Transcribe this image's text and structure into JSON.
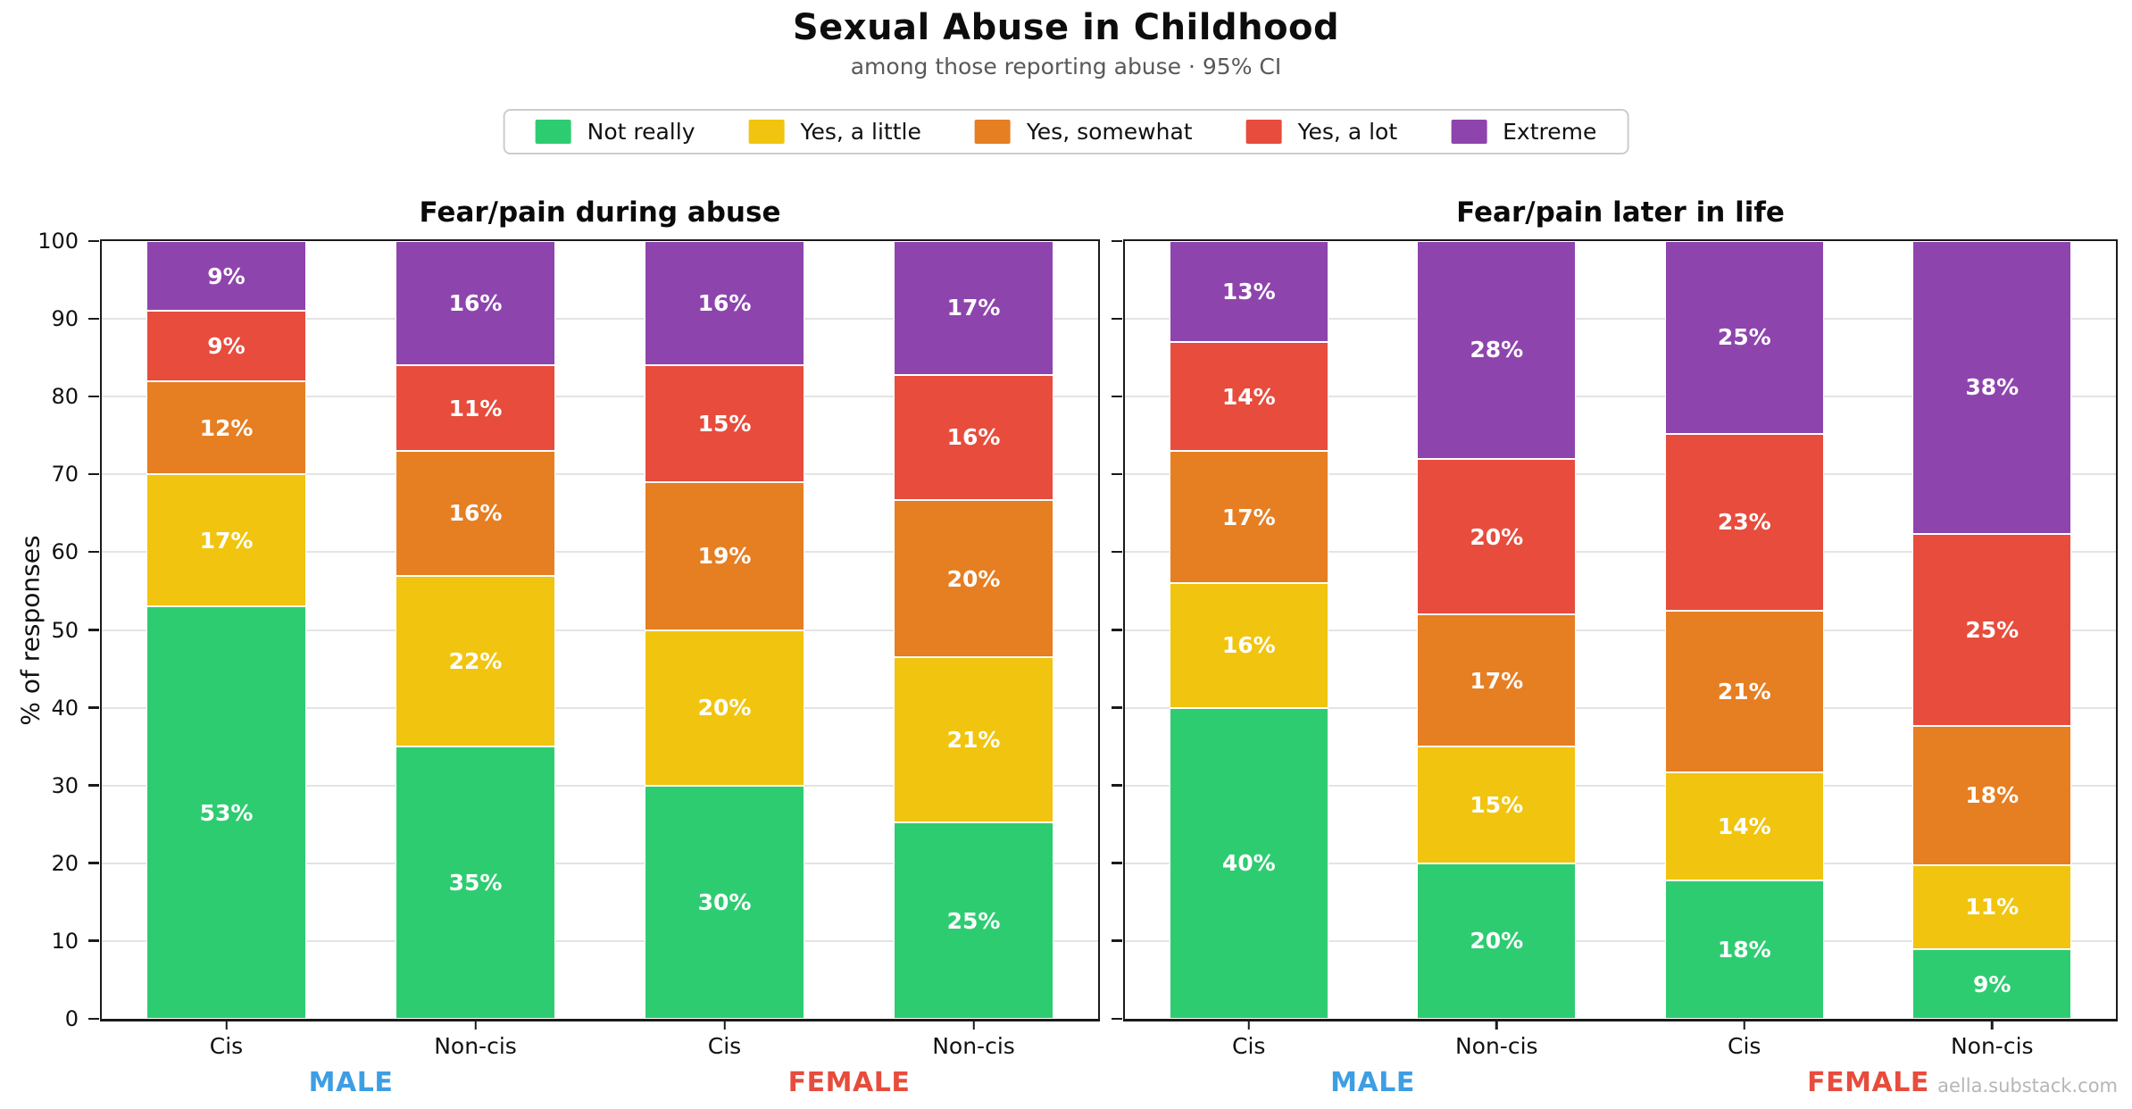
{
  "page": {
    "title": "Sexual Abuse in Childhood",
    "subtitle": "among those reporting abuse · 95% CI",
    "watermark": "aella.substack.com"
  },
  "colors": {
    "not_really": "#2ecc71",
    "yes_a_little": "#f1c40f",
    "yes_somewhat": "#e67e22",
    "yes_a_lot": "#e74c3c",
    "extreme": "#8e44ad",
    "male_label": "#3d9ee3",
    "female_label": "#e74c3c"
  },
  "legend": {
    "items": [
      {
        "label": "Not really",
        "color": "#2ecc71"
      },
      {
        "label": "Yes, a little",
        "color": "#f1c40f"
      },
      {
        "label": "Yes, somewhat",
        "color": "#e67e22"
      },
      {
        "label": "Yes, a lot",
        "color": "#e74c3c"
      },
      {
        "label": "Extreme",
        "color": "#8e44ad"
      }
    ]
  },
  "chart_data": [
    {
      "type": "stacked_bar",
      "title": "Fear/pain during abuse",
      "ylabel": "% of responses",
      "ylim": [
        0,
        100
      ],
      "ytick_step": 10,
      "ytick_labels": true,
      "grid": true,
      "labels_suffix": "%",
      "categories": [
        "Cis",
        "Non-cis",
        "Cis",
        "Non-cis"
      ],
      "group_labels": [
        {
          "label": "MALE",
          "color": "#3d9ee3"
        },
        {
          "label": "FEMALE",
          "color": "#e74c3c"
        }
      ],
      "series": [
        {
          "name": "Not really",
          "color": "#2ecc71",
          "values": [
            53,
            35,
            30,
            25
          ]
        },
        {
          "name": "Yes, a little",
          "color": "#f1c40f",
          "values": [
            17,
            22,
            20,
            21
          ]
        },
        {
          "name": "Yes, somewhat",
          "color": "#e67e22",
          "values": [
            12,
            16,
            19,
            20
          ]
        },
        {
          "name": "Yes, a lot",
          "color": "#e74c3c",
          "values": [
            9,
            11,
            15,
            16
          ]
        },
        {
          "name": "Extreme",
          "color": "#8e44ad",
          "values": [
            9,
            16,
            16,
            17
          ]
        }
      ]
    },
    {
      "type": "stacked_bar",
      "title": "Fear/pain later in life",
      "ylabel": "",
      "ylim": [
        0,
        100
      ],
      "ytick_step": 10,
      "ytick_labels": false,
      "grid": true,
      "labels_suffix": "%",
      "categories": [
        "Cis",
        "Non-cis",
        "Cis",
        "Non-cis"
      ],
      "group_labels": [
        {
          "label": "MALE",
          "color": "#3d9ee3"
        },
        {
          "label": "FEMALE",
          "color": "#e74c3c"
        }
      ],
      "series": [
        {
          "name": "Not really",
          "color": "#2ecc71",
          "values": [
            40,
            20,
            18,
            9
          ]
        },
        {
          "name": "Yes, a little",
          "color": "#f1c40f",
          "values": [
            16,
            15,
            14,
            11
          ]
        },
        {
          "name": "Yes, somewhat",
          "color": "#e67e22",
          "values": [
            17,
            17,
            21,
            18
          ]
        },
        {
          "name": "Yes, a lot",
          "color": "#e74c3c",
          "values": [
            14,
            20,
            23,
            25
          ]
        },
        {
          "name": "Extreme",
          "color": "#8e44ad",
          "values": [
            13,
            28,
            25,
            38
          ]
        }
      ]
    }
  ]
}
